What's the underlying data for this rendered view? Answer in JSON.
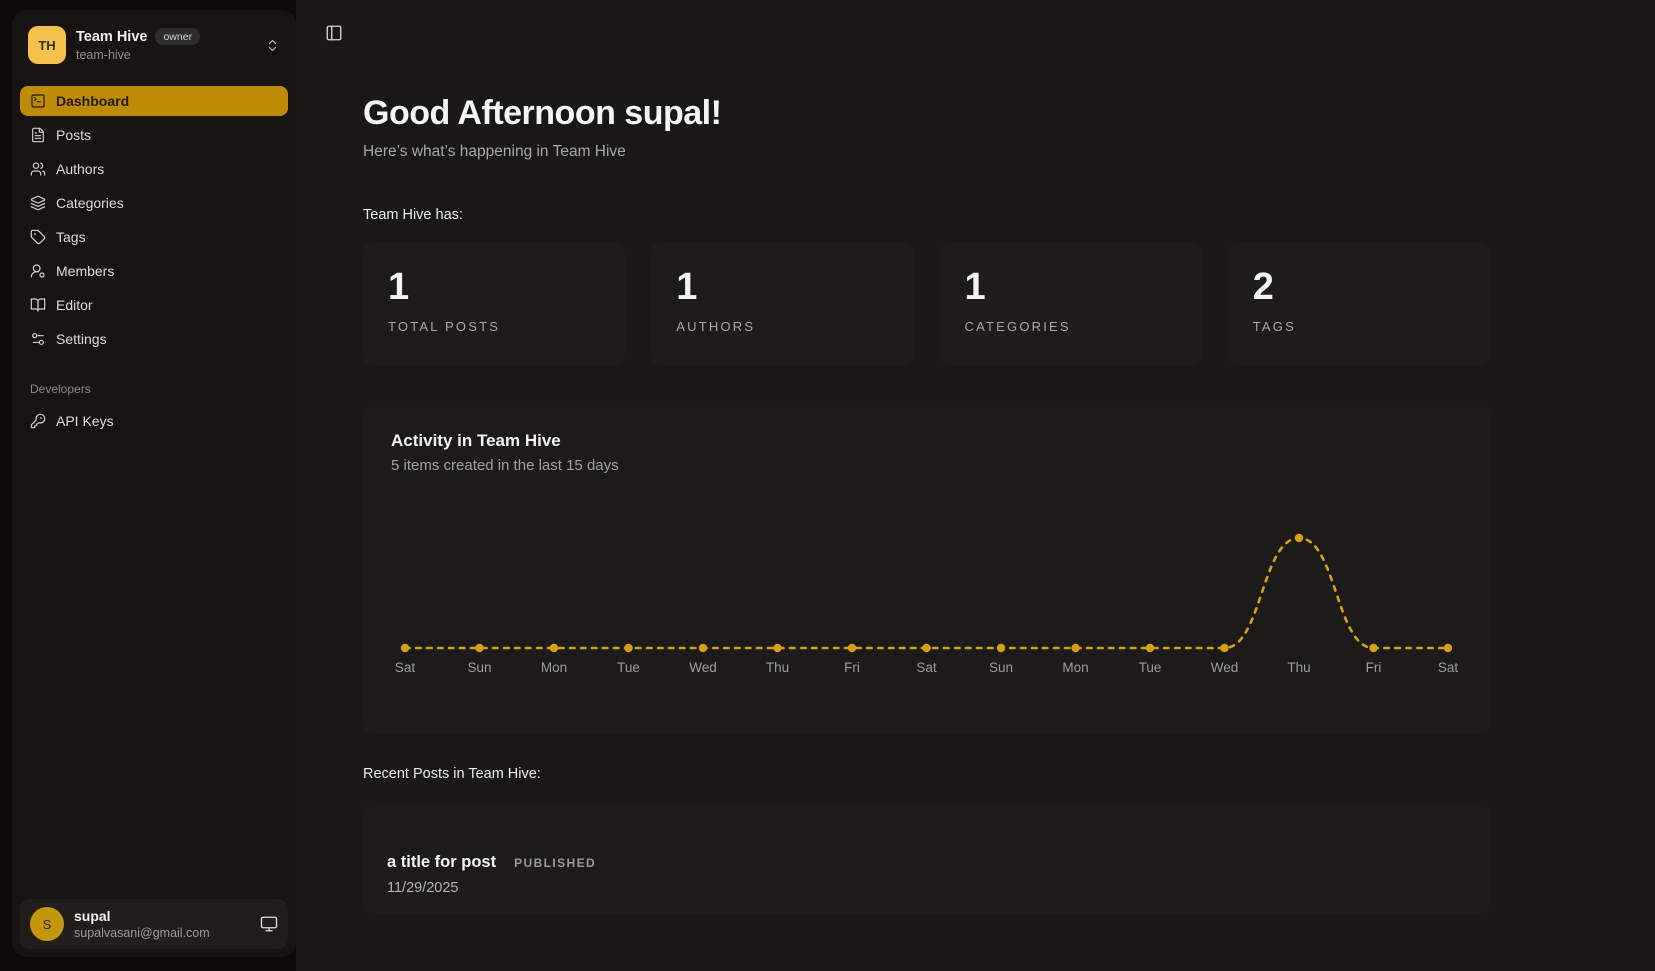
{
  "colors": {
    "accent": "#bd8b06",
    "avatar": "#f4c24a",
    "chart": "#d4a017"
  },
  "sidebar": {
    "team": {
      "initials": "TH",
      "name": "Team Hive",
      "badge": "owner",
      "slug": "team-hive"
    },
    "items": [
      {
        "label": "Dashboard"
      },
      {
        "label": "Posts"
      },
      {
        "label": "Authors"
      },
      {
        "label": "Categories"
      },
      {
        "label": "Tags"
      },
      {
        "label": "Members"
      },
      {
        "label": "Editor"
      },
      {
        "label": "Settings"
      }
    ],
    "section_label": "Developers",
    "dev_items": [
      {
        "label": "API Keys"
      }
    ],
    "user": {
      "initial": "S",
      "name": "supal",
      "email": "supalvasani@gmail.com"
    }
  },
  "main": {
    "greeting": "Good Afternoon supal!",
    "subtitle": "Here’s what’s happening in Team Hive",
    "stats_intro": "Team Hive has:",
    "stats": [
      {
        "value": "1",
        "label": "TOTAL POSTS"
      },
      {
        "value": "1",
        "label": "AUTHORS"
      },
      {
        "value": "1",
        "label": "CATEGORIES"
      },
      {
        "value": "2",
        "label": "TAGS"
      }
    ],
    "recent_label": "Recent Posts in Team Hive:",
    "post": {
      "title": "a title for post",
      "status": "PUBLISHED",
      "date": "11/29/2025"
    }
  },
  "chart_data": {
    "type": "line",
    "title": "Activity in Team Hive",
    "subtitle": "5 items created in the last 15 days",
    "x": [
      "Sat",
      "Sun",
      "Mon",
      "Tue",
      "Wed",
      "Thu",
      "Fri",
      "Sat",
      "Sun",
      "Mon",
      "Tue",
      "Wed",
      "Thu",
      "Fri",
      "Sat"
    ],
    "series": [
      {
        "name": "items created",
        "values": [
          0,
          0,
          0,
          0,
          0,
          0,
          0,
          0,
          0,
          0,
          0,
          0,
          5,
          0,
          0
        ]
      }
    ],
    "ylim": [
      0,
      5
    ],
    "xlabel": "",
    "ylabel": "",
    "grid": false,
    "legend": false,
    "line_color": "#d4a017",
    "line_style": "dashed"
  }
}
